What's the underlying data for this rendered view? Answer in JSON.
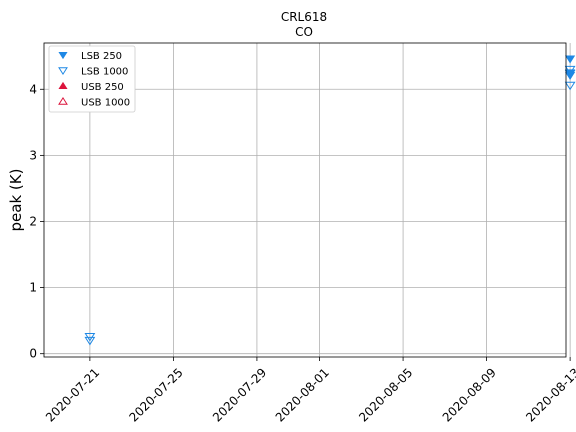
{
  "chart_data": {
    "type": "scatter",
    "title_line1": "CRL618",
    "title_line2": "CO",
    "xlabel": "",
    "ylabel": "peak (K)",
    "x_ticks": [
      "2020-07-21",
      "2020-07-25",
      "2020-07-29",
      "2020-08-01",
      "2020-08-05",
      "2020-08-09",
      "2020-08-13"
    ],
    "xlim": [
      "2020-07-20",
      "2020-08-14"
    ],
    "ylim": [
      -0.05,
      4.7
    ],
    "y_ticks": [
      0,
      1,
      2,
      3,
      4
    ],
    "grid": true,
    "legend_position": "top-left",
    "series": [
      {
        "name": "LSB 250",
        "marker": "triangle-down-filled",
        "color": "#1e88e5",
        "points": [
          {
            "x": "2020-08-13",
            "y": 4.46
          },
          {
            "x": "2020-08-13",
            "y": 4.25
          },
          {
            "x": "2020-08-13",
            "y": 4.21
          },
          {
            "x": "2020-08-14",
            "y": 4.39
          },
          {
            "x": "2020-08-14",
            "y": 4.21
          },
          {
            "x": "2020-08-14",
            "y": 4.18
          },
          {
            "x": "2020-08-14",
            "y": 4.15
          }
        ]
      },
      {
        "name": "LSB 1000",
        "marker": "triangle-down-open",
        "color": "#1e88e5",
        "points": [
          {
            "x": "2020-07-21",
            "y": 0.26
          },
          {
            "x": "2020-07-21",
            "y": 0.2
          },
          {
            "x": "2020-08-13",
            "y": 4.3
          },
          {
            "x": "2020-08-13",
            "y": 4.24
          },
          {
            "x": "2020-08-13",
            "y": 4.06
          },
          {
            "x": "2020-08-14",
            "y": 4.22
          },
          {
            "x": "2020-08-14",
            "y": 4.1
          },
          {
            "x": "2020-08-14",
            "y": 4.05
          }
        ]
      },
      {
        "name": "USB 250",
        "marker": "triangle-up-filled",
        "color": "#dc143c",
        "points": []
      },
      {
        "name": "USB 1000",
        "marker": "triangle-up-open",
        "color": "#dc143c",
        "points": []
      }
    ]
  }
}
